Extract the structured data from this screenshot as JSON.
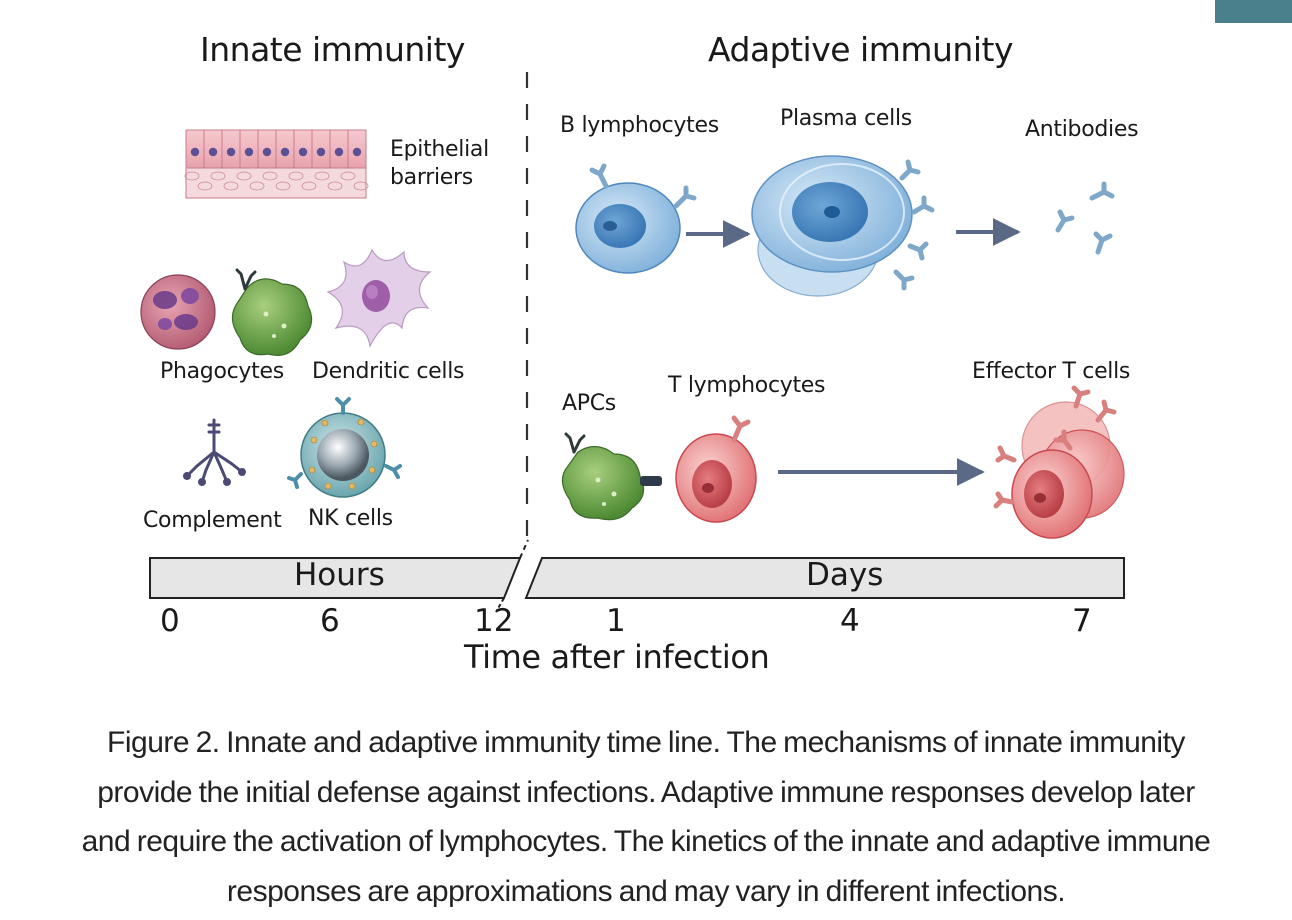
{
  "header_left": "Innate immunity",
  "header_right": "Adaptive immunity",
  "innate": {
    "epithelial_line1": "Epithelial",
    "epithelial_line2": "barriers",
    "phagocytes": "Phagocytes",
    "dendritic": "Dendritic cells",
    "complement": "Complement",
    "nk": "NK cells"
  },
  "adaptive": {
    "b_lymphocytes": "B lymphocytes",
    "plasma": "Plasma cells",
    "antibodies": "Antibodies",
    "apcs": "APCs",
    "t_lymphocytes": "T lymphocytes",
    "effector": "Effector T cells"
  },
  "timeline": {
    "hours": "Hours",
    "days": "Days",
    "ticks": [
      "0",
      "6",
      "12",
      "1",
      "4",
      "7"
    ],
    "axis_label": "Time after infection"
  },
  "caption": {
    "line1": "Figure 2. Innate and adaptive immunity time line. The mechanisms of innate immunity",
    "line2": "provide the initial defense against infections. Adaptive immune responses develop later",
    "line3": "and require the activation of lymphocytes. The kinetics of the innate and adaptive immune",
    "line4": "responses are approximations and may vary in different infections."
  },
  "colors": {
    "teal_tab": "#4a7f8c",
    "b_cell_blue": "#9cc4e6",
    "t_cell_red": "#e8878a",
    "apc_green": "#6ea04a",
    "dendritic_violet": "#d9bfe0",
    "timeline_fill": "#e6e6e6"
  }
}
